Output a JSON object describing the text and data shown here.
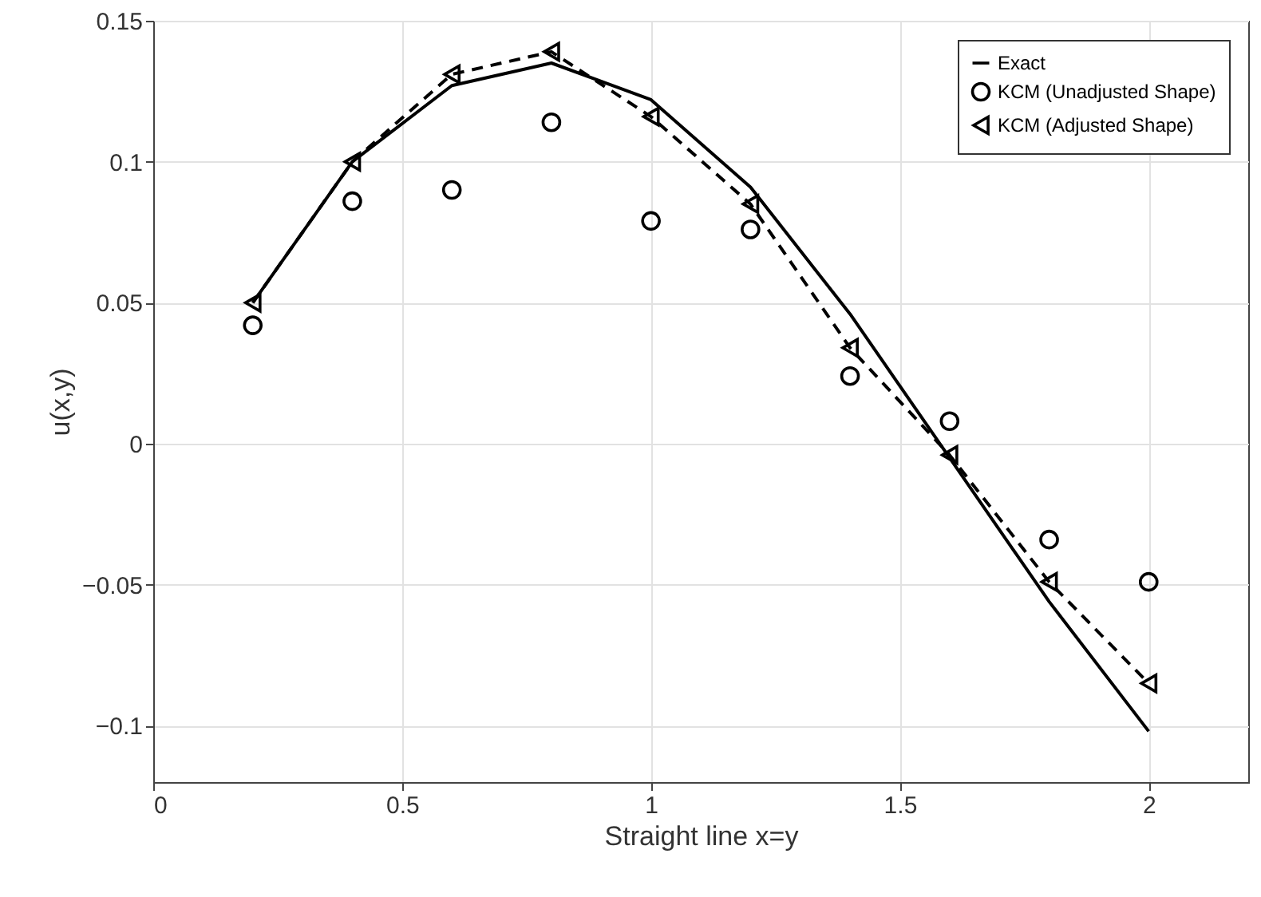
{
  "chart_data": {
    "type": "line",
    "xlabel": "Straight line x=y",
    "ylabel": "u(x,y)",
    "x": [
      0.2,
      0.4,
      0.6,
      0.8,
      1.0,
      1.2,
      1.4,
      1.6,
      1.8,
      2.0
    ],
    "series": [
      {
        "name": "Exact",
        "color": "#000000",
        "marker": "none",
        "line_style": "solid",
        "values": [
          0.05,
          0.1,
          0.127,
          0.135,
          0.122,
          0.091,
          0.046,
          -0.005,
          -0.056,
          -0.102
        ]
      },
      {
        "name": "KCM (Unadjusted Shape)",
        "type": "scatter",
        "color": "#000000",
        "marker": "circle",
        "values": [
          0.042,
          0.086,
          0.09,
          0.114,
          0.079,
          0.076,
          0.024,
          0.008,
          -0.034,
          -0.049
        ]
      },
      {
        "name": "KCM (Adjusted Shape)",
        "color": "#000000",
        "marker": "triangle",
        "line_style": "dashed",
        "values": [
          0.05,
          0.1,
          0.131,
          0.139,
          0.116,
          0.085,
          0.034,
          -0.004,
          -0.049,
          -0.085
        ]
      }
    ],
    "xlim": [
      0,
      2.2
    ],
    "xticks": [
      0,
      0.5,
      1,
      1.5,
      2
    ],
    "ylim": [
      -0.12,
      0.15
    ],
    "yticks": [
      -0.1,
      -0.05,
      0,
      0.05,
      0.1,
      0.15
    ],
    "grid": true,
    "legend": "top right"
  }
}
